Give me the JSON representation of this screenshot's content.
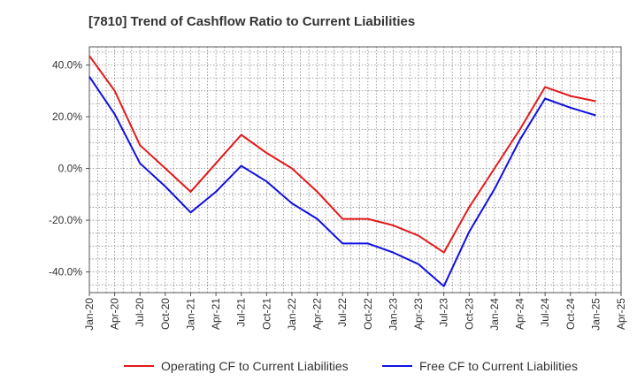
{
  "chart_data": {
    "type": "line",
    "title": "[7810]  Trend of Cashflow Ratio to Current Liabilities",
    "xlabel": "",
    "ylabel": "",
    "x": [
      "Jan-20",
      "Apr-20",
      "Jul-20",
      "Oct-20",
      "Jan-21",
      "Apr-21",
      "Jul-21",
      "Oct-21",
      "Jan-22",
      "Apr-22",
      "Jul-22",
      "Oct-22",
      "Jan-23",
      "Apr-23",
      "Jul-23",
      "Oct-23",
      "Jan-24",
      "Apr-24",
      "Jul-24",
      "Oct-24",
      "Jan-25"
    ],
    "x_ticks": [
      "Jan-20",
      "Apr-20",
      "Jul-20",
      "Oct-20",
      "Jan-21",
      "Apr-21",
      "Jul-21",
      "Oct-21",
      "Jan-22",
      "Apr-22",
      "Jul-22",
      "Oct-22",
      "Jan-23",
      "Apr-23",
      "Jul-23",
      "Oct-23",
      "Jan-24",
      "Apr-24",
      "Jul-24",
      "Oct-24",
      "Jan-25",
      "Apr-25"
    ],
    "y_ticks": [
      -40,
      -20,
      0,
      20,
      40
    ],
    "y_tick_labels": [
      "-40.0%",
      "-20.0%",
      "0.0%",
      "20.0%",
      "40.0%"
    ],
    "ylim": [
      -48,
      47
    ],
    "grid": true,
    "legend_position": "bottom",
    "series": [
      {
        "name": "Operating CF to Current Liabilities",
        "color": "#e31a1c",
        "values": [
          43.5,
          30,
          9,
          0,
          -9,
          2,
          13,
          6,
          0,
          -9,
          -19.5,
          -19.5,
          -22,
          -26,
          -32.5,
          -15,
          0,
          15,
          31.5,
          28,
          26
        ]
      },
      {
        "name": "Free CF to Current Liabilities",
        "color": "#1010e0",
        "values": [
          35.5,
          21,
          2,
          -7,
          -17,
          -9,
          1,
          -5,
          -13.5,
          -19.5,
          -29,
          -29,
          -32.5,
          -37,
          -45.5,
          -24.5,
          -8,
          11,
          27,
          23.5,
          20.5
        ]
      }
    ]
  }
}
